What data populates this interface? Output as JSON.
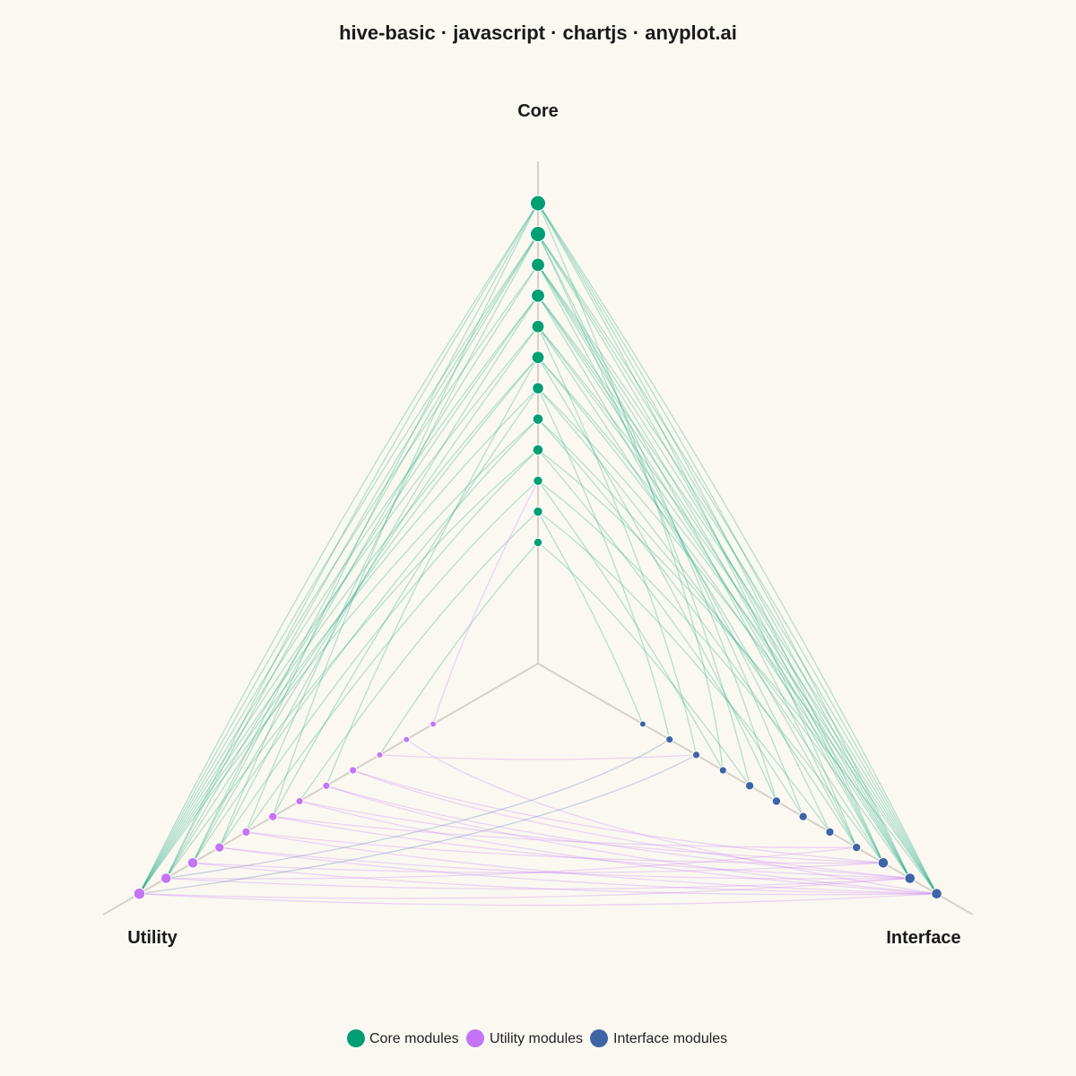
{
  "chart_data": {
    "type": "hive",
    "title": "hive-basic · javascript · chartjs · anyplot.ai",
    "axes": [
      {
        "name": "Core",
        "color": "#009E73"
      },
      {
        "name": "Utility",
        "color": "#C475F5"
      },
      {
        "name": "Interface",
        "color": "#3F64A6"
      }
    ],
    "legend": {
      "placement": "bottom-center",
      "items": [
        {
          "label": "Core modules",
          "color": "#009E73"
        },
        {
          "label": "Utility modules",
          "color": "#C475F5"
        },
        {
          "label": "Interface modules",
          "color": "#3F64A6"
        }
      ]
    },
    "nodes": {
      "Core": [
        {
          "pos": 1,
          "degree": 3
        },
        {
          "pos": 2,
          "degree": 4
        },
        {
          "pos": 3,
          "degree": 4
        },
        {
          "pos": 4,
          "degree": 5
        },
        {
          "pos": 5,
          "degree": 5
        },
        {
          "pos": 6,
          "degree": 6
        },
        {
          "pos": 7,
          "degree": 7
        },
        {
          "pos": 8,
          "degree": 7
        },
        {
          "pos": 9,
          "degree": 8
        },
        {
          "pos": 10,
          "degree": 8
        },
        {
          "pos": 11,
          "degree": 10
        },
        {
          "pos": 12,
          "degree": 10
        }
      ],
      "Utility": [
        {
          "pos": 1,
          "degree": 1
        },
        {
          "pos": 2,
          "degree": 1
        },
        {
          "pos": 3,
          "degree": 1
        },
        {
          "pos": 4,
          "degree": 2
        },
        {
          "pos": 5,
          "degree": 2
        },
        {
          "pos": 6,
          "degree": 2
        },
        {
          "pos": 7,
          "degree": 3
        },
        {
          "pos": 8,
          "degree": 3
        },
        {
          "pos": 9,
          "degree": 4
        },
        {
          "pos": 10,
          "degree": 5
        },
        {
          "pos": 11,
          "degree": 5
        },
        {
          "pos": 12,
          "degree": 6
        }
      ],
      "Interface": [
        {
          "pos": 1,
          "degree": 1
        },
        {
          "pos": 2,
          "degree": 2
        },
        {
          "pos": 3,
          "degree": 2
        },
        {
          "pos": 4,
          "degree": 2
        },
        {
          "pos": 5,
          "degree": 3
        },
        {
          "pos": 6,
          "degree": 3
        },
        {
          "pos": 7,
          "degree": 3
        },
        {
          "pos": 8,
          "degree": 3
        },
        {
          "pos": 9,
          "degree": 3
        },
        {
          "pos": 10,
          "degree": 5
        },
        {
          "pos": 11,
          "degree": 5
        },
        {
          "pos": 12,
          "degree": 5
        }
      ]
    },
    "edges": [
      [
        "Core",
        1,
        "Utility",
        3
      ],
      [
        "Core",
        1,
        "Interface",
        5
      ],
      [
        "Core",
        2,
        "Utility",
        6
      ],
      [
        "Core",
        2,
        "Interface",
        1
      ],
      [
        "Core",
        2,
        "Interface",
        8
      ],
      [
        "Core",
        3,
        "Utility",
        8
      ],
      [
        "Core",
        3,
        "Interface",
        4
      ],
      [
        "Core",
        3,
        "Interface",
        10
      ],
      [
        "Core",
        4,
        "Utility",
        9
      ],
      [
        "Core",
        4,
        "Utility",
        11
      ],
      [
        "Core",
        4,
        "Interface",
        7
      ],
      [
        "Core",
        4,
        "Interface",
        12
      ],
      [
        "Core",
        5,
        "Utility",
        10
      ],
      [
        "Core",
        5,
        "Utility",
        12
      ],
      [
        "Core",
        5,
        "Interface",
        9
      ],
      [
        "Core",
        5,
        "Interface",
        11
      ],
      [
        "Core",
        6,
        "Utility",
        7
      ],
      [
        "Core",
        6,
        "Utility",
        12
      ],
      [
        "Core",
        6,
        "Interface",
        2
      ],
      [
        "Core",
        6,
        "Interface",
        10
      ],
      [
        "Core",
        6,
        "Interface",
        12
      ],
      [
        "Core",
        7,
        "Utility",
        5
      ],
      [
        "Core",
        7,
        "Utility",
        11
      ],
      [
        "Core",
        7,
        "Utility",
        12
      ],
      [
        "Core",
        7,
        "Interface",
        6
      ],
      [
        "Core",
        7,
        "Interface",
        11
      ],
      [
        "Core",
        7,
        "Interface",
        12
      ],
      [
        "Core",
        8,
        "Utility",
        10
      ],
      [
        "Core",
        8,
        "Utility",
        12
      ],
      [
        "Core",
        8,
        "Interface",
        3
      ],
      [
        "Core",
        8,
        "Interface",
        9
      ],
      [
        "Core",
        8,
        "Interface",
        11
      ],
      [
        "Core",
        8,
        "Interface",
        12
      ],
      [
        "Core",
        9,
        "Utility",
        9
      ],
      [
        "Core",
        9,
        "Utility",
        11
      ],
      [
        "Core",
        9,
        "Utility",
        12
      ],
      [
        "Core",
        9,
        "Interface",
        8
      ],
      [
        "Core",
        9,
        "Interface",
        10
      ],
      [
        "Core",
        9,
        "Interface",
        11
      ],
      [
        "Core",
        9,
        "Interface",
        12
      ],
      [
        "Core",
        10,
        "Utility",
        10
      ],
      [
        "Core",
        10,
        "Utility",
        12
      ],
      [
        "Core",
        10,
        "Interface",
        7
      ],
      [
        "Core",
        10,
        "Interface",
        9
      ],
      [
        "Core",
        10,
        "Interface",
        10
      ],
      [
        "Core",
        10,
        "Interface",
        11
      ],
      [
        "Core",
        10,
        "Interface",
        12
      ],
      [
        "Core",
        11,
        "Utility",
        11
      ],
      [
        "Core",
        11,
        "Utility",
        12
      ],
      [
        "Core",
        11,
        "Utility",
        10
      ],
      [
        "Core",
        11,
        "Utility",
        8
      ],
      [
        "Core",
        11,
        "Interface",
        12
      ],
      [
        "Core",
        11,
        "Interface",
        11
      ],
      [
        "Core",
        11,
        "Interface",
        10
      ],
      [
        "Core",
        11,
        "Interface",
        6
      ],
      [
        "Core",
        11,
        "Interface",
        5
      ],
      [
        "Core",
        12,
        "Utility",
        12
      ],
      [
        "Core",
        12,
        "Utility",
        11
      ],
      [
        "Core",
        12,
        "Utility",
        9
      ],
      [
        "Core",
        12,
        "Utility",
        7
      ],
      [
        "Core",
        12,
        "Interface",
        12
      ],
      [
        "Core",
        12,
        "Interface",
        11
      ],
      [
        "Core",
        12,
        "Interface",
        10
      ],
      [
        "Core",
        12,
        "Interface",
        9
      ],
      [
        "Core",
        12,
        "Interface",
        4
      ],
      [
        "Utility",
        1,
        "Core",
        3
      ],
      [
        "Utility",
        2,
        "Interface",
        12
      ],
      [
        "Utility",
        3,
        "Interface",
        3
      ],
      [
        "Utility",
        4,
        "Interface",
        11
      ],
      [
        "Utility",
        4,
        "Interface",
        10
      ],
      [
        "Utility",
        5,
        "Interface",
        12
      ],
      [
        "Utility",
        5,
        "Interface",
        11
      ],
      [
        "Utility",
        6,
        "Interface",
        10
      ],
      [
        "Utility",
        6,
        "Interface",
        12
      ],
      [
        "Utility",
        7,
        "Interface",
        11
      ],
      [
        "Utility",
        7,
        "Interface",
        9
      ],
      [
        "Utility",
        8,
        "Interface",
        12
      ],
      [
        "Utility",
        8,
        "Interface",
        10
      ],
      [
        "Utility",
        9,
        "Interface",
        11
      ],
      [
        "Utility",
        9,
        "Interface",
        12
      ],
      [
        "Utility",
        10,
        "Interface",
        10
      ],
      [
        "Utility",
        10,
        "Interface",
        12
      ],
      [
        "Utility",
        11,
        "Interface",
        11
      ],
      [
        "Utility",
        11,
        "Interface",
        9
      ],
      [
        "Utility",
        12,
        "Interface",
        12
      ],
      [
        "Utility",
        12,
        "Interface",
        11
      ],
      [
        "Interface",
        2,
        "Utility",
        11
      ],
      [
        "Interface",
        3,
        "Utility",
        12
      ]
    ]
  }
}
